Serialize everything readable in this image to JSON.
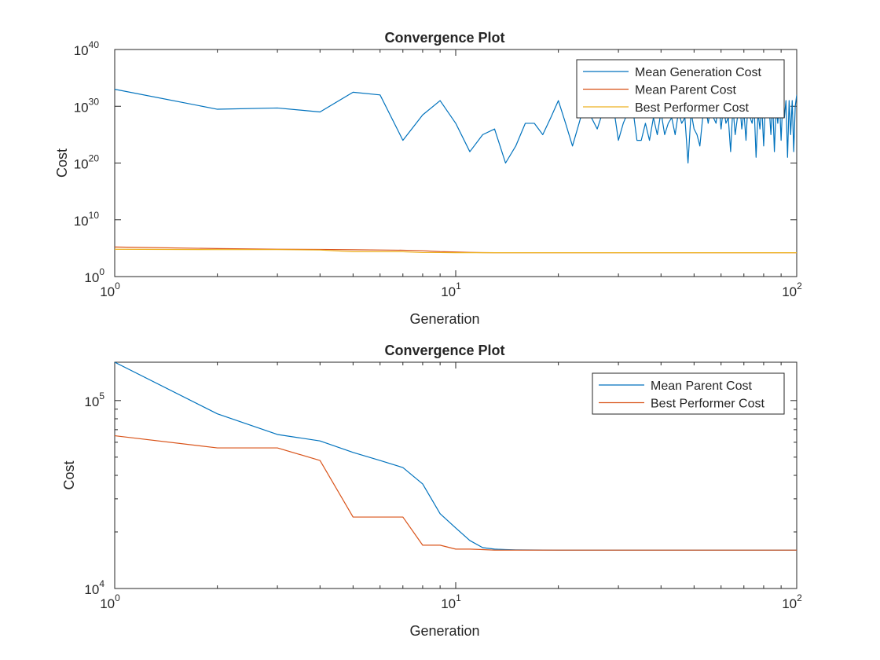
{
  "chart_data": [
    {
      "type": "line",
      "title": "Convergence Plot",
      "xlabel": "Generation",
      "ylabel": "Cost",
      "xscale": "log",
      "yscale": "log",
      "xlim": [
        1,
        100
      ],
      "ylim": [
        1,
        1e+40
      ],
      "xticks": [
        {
          "base": "10",
          "exp": "0",
          "value": 1
        },
        {
          "base": "10",
          "exp": "1",
          "value": 10
        },
        {
          "base": "10",
          "exp": "2",
          "value": 100
        }
      ],
      "yticks": [
        {
          "base": "10",
          "exp": "0",
          "value": 1
        },
        {
          "base": "10",
          "exp": "10",
          "value": 10000000000.0
        },
        {
          "base": "10",
          "exp": "20",
          "value": 1e+20
        },
        {
          "base": "10",
          "exp": "30",
          "value": 1e+30
        },
        {
          "base": "10",
          "exp": "40",
          "value": 1e+40
        }
      ],
      "grid": false,
      "legend_position": "top-right",
      "series": [
        {
          "name": "Mean Generation Cost",
          "color": "#0072BD",
          "x": [
            1,
            2,
            3,
            4,
            5,
            6,
            7,
            8,
            9,
            10,
            11,
            12,
            13,
            14,
            15,
            16,
            17,
            18,
            19,
            20,
            21,
            22,
            23,
            24,
            25,
            26,
            27,
            28,
            29,
            30,
            31,
            32,
            33,
            34,
            35,
            36,
            37,
            38,
            39,
            40,
            41,
            42,
            43,
            44,
            45,
            46,
            47,
            48,
            49,
            50,
            51,
            52,
            53,
            54,
            55,
            56,
            57,
            58,
            59,
            60,
            61,
            62,
            63,
            64,
            65,
            66,
            67,
            68,
            69,
            70,
            71,
            72,
            73,
            74,
            75,
            76,
            77,
            78,
            79,
            80,
            81,
            82,
            83,
            84,
            85,
            86,
            87,
            88,
            89,
            90,
            91,
            92,
            93,
            94,
            95,
            96,
            97,
            98,
            99,
            100
          ],
          "y": [
            1e+33,
            3e+29,
            5e+29,
            1e+29,
            3e+32,
            1e+32,
            1e+24,
            3e+28,
            1e+31,
            1e+27,
            1e+22,
            1e+25,
            1e+26,
            1e+20,
            1e+23,
            1e+27,
            1e+27,
            1e+25,
            1e+28,
            1e+31,
            1e+27,
            1e+23,
            1e+27,
            1e+31,
            1e+28,
            1e+26,
            1e+29,
            1e+28,
            1e+30,
            1e+24,
            1e+27,
            1e+29,
            1e+30,
            1e+24,
            1e+24,
            1e+27,
            1e+24,
            1e+28,
            1e+25,
            1e+29,
            1e+25,
            1e+27,
            1e+28,
            1e+25,
            1e+29,
            1e+27,
            1e+28,
            1e+20,
            1e+29,
            1e+26,
            1e+25,
            1e+23,
            1e+28,
            1e+30,
            1e+27,
            1e+30,
            1e+28,
            1e+27,
            1e+31,
            1e+26,
            1e+30,
            1e+27,
            1e+28,
            1e+22,
            1e+30,
            1e+25,
            1e+28,
            1e+31,
            1e+26,
            1e+29,
            1e+24,
            1e+31,
            1e+28,
            1e+27,
            1e+30,
            1e+21,
            1e+29,
            1e+26,
            1e+30,
            1e+23,
            1e+31,
            1e+28,
            1e+30,
            1e+25,
            1e+31,
            1e+22,
            1e+30,
            1e+27,
            1e+31,
            1e+24,
            1e+31,
            1e+28,
            1e+31,
            1e+21,
            1e+31,
            1e+25,
            1e+31,
            1e+22,
            1e+30,
            1e+32
          ]
        },
        {
          "name": "Mean Parent Cost",
          "color": "#D95319",
          "x": [
            1,
            2,
            3,
            4,
            5,
            6,
            7,
            8,
            9,
            10,
            11,
            12,
            13,
            14,
            15,
            20,
            30,
            50,
            100
          ],
          "y": [
            160000,
            85000,
            66000,
            61000,
            53000,
            48000,
            44000,
            36000,
            25000,
            21000,
            18000,
            16500,
            16200,
            16100,
            16050,
            16000,
            16000,
            16000,
            16000
          ]
        },
        {
          "name": "Best Performer Cost",
          "color": "#EDB120",
          "x": [
            1,
            2,
            3,
            4,
            5,
            6,
            7,
            8,
            9,
            10,
            11,
            12,
            13,
            14,
            15,
            20,
            30,
            50,
            100
          ],
          "y": [
            65000,
            56000,
            56000,
            48000,
            24000,
            24000,
            24000,
            17000,
            17000,
            16200,
            16200,
            16100,
            16000,
            16000,
            16000,
            16000,
            16000,
            16000,
            16000
          ]
        }
      ]
    },
    {
      "type": "line",
      "title": "Convergence Plot",
      "xlabel": "Generation",
      "ylabel": "Cost",
      "xscale": "log",
      "yscale": "log",
      "xlim": [
        1,
        100
      ],
      "ylim": [
        10000,
        160000
      ],
      "xticks": [
        {
          "base": "10",
          "exp": "0",
          "value": 1
        },
        {
          "base": "10",
          "exp": "1",
          "value": 10
        },
        {
          "base": "10",
          "exp": "2",
          "value": 100
        }
      ],
      "yticks": [
        {
          "base": "10",
          "exp": "4",
          "value": 10000
        },
        {
          "base": "10",
          "exp": "5",
          "value": 100000
        }
      ],
      "grid": false,
      "legend_position": "top-right",
      "series": [
        {
          "name": "Mean Parent Cost",
          "color": "#0072BD",
          "x": [
            1,
            2,
            3,
            4,
            5,
            6,
            7,
            8,
            9,
            10,
            11,
            12,
            13,
            14,
            15,
            20,
            30,
            50,
            100
          ],
          "y": [
            160000,
            85000,
            66000,
            61000,
            53000,
            48000,
            44000,
            36000,
            25000,
            21000,
            18000,
            16500,
            16200,
            16100,
            16050,
            16000,
            16000,
            16000,
            16000
          ]
        },
        {
          "name": "Best Performer Cost",
          "color": "#D95319",
          "x": [
            1,
            2,
            3,
            4,
            5,
            6,
            7,
            8,
            9,
            10,
            11,
            12,
            13,
            14,
            15,
            20,
            30,
            50,
            100
          ],
          "y": [
            65000,
            56000,
            56000,
            48000,
            24000,
            24000,
            24000,
            17000,
            17000,
            16200,
            16200,
            16100,
            16000,
            16000,
            16000,
            16000,
            16000,
            16000,
            16000
          ]
        }
      ]
    }
  ]
}
